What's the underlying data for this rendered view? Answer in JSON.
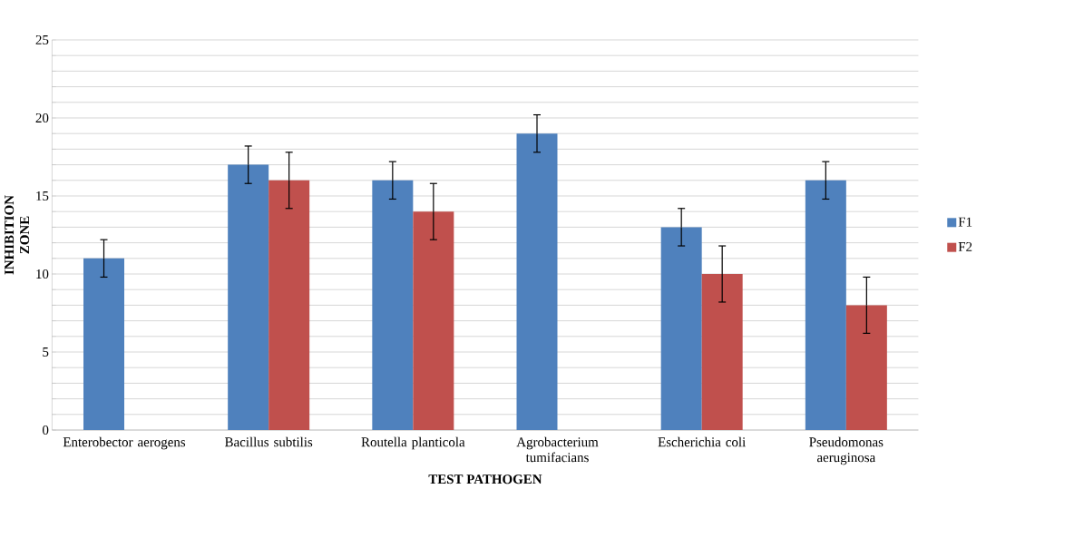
{
  "chart_data": {
    "type": "bar",
    "xlabel": "TEST PATHOGEN",
    "ylabel": "INHIBITION ZONE",
    "categories": [
      "Enterobector aerogens",
      "Bacillus subtilis",
      "Routella planticola",
      "Agrobacterium tumifacians",
      "Escherichia coli",
      "Pseudomonas aeruginosa"
    ],
    "series": [
      {
        "name": "F1",
        "color": "#4f81bd",
        "values": [
          11,
          17,
          16,
          19,
          13,
          16
        ],
        "errors": [
          1.2,
          1.2,
          1.2,
          1.2,
          1.2,
          1.2
        ]
      },
      {
        "name": "F2",
        "color": "#c0504d",
        "values": [
          null,
          16,
          14,
          null,
          10,
          8
        ],
        "errors": [
          null,
          1.8,
          1.8,
          null,
          1.8,
          1.8
        ]
      }
    ],
    "ylim": [
      0,
      25
    ],
    "yticks": [
      0,
      {
        "value": 1,
        "label": null
      },
      {
        "value": 2,
        "label": null
      },
      {
        "value": 3,
        "label": null
      },
      {
        "value": 4,
        "label": null
      },
      5,
      {
        "value": 6,
        "label": null
      },
      {
        "value": 7,
        "label": null
      },
      {
        "value": 8,
        "label": null
      },
      {
        "value": 9,
        "label": null
      },
      10,
      {
        "value": 11,
        "label": null
      },
      {
        "value": 12,
        "label": null
      },
      {
        "value": 13,
        "label": null
      },
      {
        "value": 14,
        "label": null
      },
      15,
      {
        "value": 16,
        "label": null
      },
      {
        "value": 17,
        "label": null
      },
      {
        "value": 18,
        "label": null
      },
      {
        "value": 19,
        "label": null
      },
      20,
      {
        "value": 21,
        "label": null
      },
      {
        "value": 22,
        "label": null
      },
      {
        "value": 23,
        "label": null
      },
      {
        "value": 24,
        "label": null
      },
      25
    ],
    "grid": "y",
    "legend": "right"
  }
}
